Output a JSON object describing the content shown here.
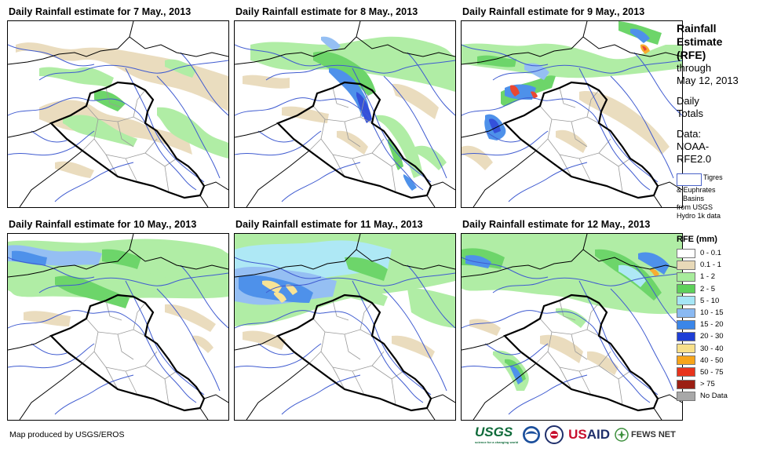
{
  "panels": [
    {
      "title": "Daily Rainfall estimate for 7 May., 2013"
    },
    {
      "title": "Daily Rainfall estimate for 8 May., 2013"
    },
    {
      "title": "Daily Rainfall estimate for 9 May., 2013"
    },
    {
      "title": "Daily Rainfall estimate for 10 May., 2013"
    },
    {
      "title": "Daily Rainfall estimate for 11 May., 2013"
    },
    {
      "title": "Daily Rainfall estimate for 12 May., 2013"
    }
  ],
  "sidebar": {
    "title_line1": "Rainfall",
    "title_line2": "Estimate",
    "title_line3": "(RFE)",
    "through": "through",
    "date": "May 12, 2013",
    "daily": "Daily",
    "totals": "Totals",
    "data_label": "Data:",
    "data_src1": "NOAA-",
    "data_src2": "RFE2.0",
    "basin_line1": "Tigres",
    "basin_line2": "& Euphrates",
    "basin_line3": "Basins",
    "basin_line4": "from USGS",
    "basin_line5": "Hydro 1k data",
    "legend_title": "RFE (mm)"
  },
  "legend": [
    {
      "label": "0 - 0.1",
      "color": "#ffffff"
    },
    {
      "label": "0.1 - 1",
      "color": "#e8d9b8"
    },
    {
      "label": "1 - 2",
      "color": "#a8ec9c"
    },
    {
      "label": "2 - 5",
      "color": "#5ed15a"
    },
    {
      "label": "5 - 10",
      "color": "#a6e6f5"
    },
    {
      "label": "10 - 15",
      "color": "#8ab9f2"
    },
    {
      "label": "15 - 20",
      "color": "#3b86e8"
    },
    {
      "label": "20 - 30",
      "color": "#1f3fd6"
    },
    {
      "label": "30 - 40",
      "color": "#f8e08a"
    },
    {
      "label": "40 - 50",
      "color": "#f7a51a"
    },
    {
      "label": "50 - 75",
      "color": "#e8341c"
    },
    {
      "label": "> 75",
      "color": "#9b1f14"
    },
    {
      "label": "No Data",
      "color": "#a8a8a8"
    }
  ],
  "footer": {
    "credit": "Map produced by USGS/EROS",
    "logo_usgs": "USGS",
    "logo_usgs_tag": "science for a changing world",
    "logo_usaid_a": "US",
    "logo_usaid_b": "AID",
    "logo_fews": "FEWS NET"
  }
}
